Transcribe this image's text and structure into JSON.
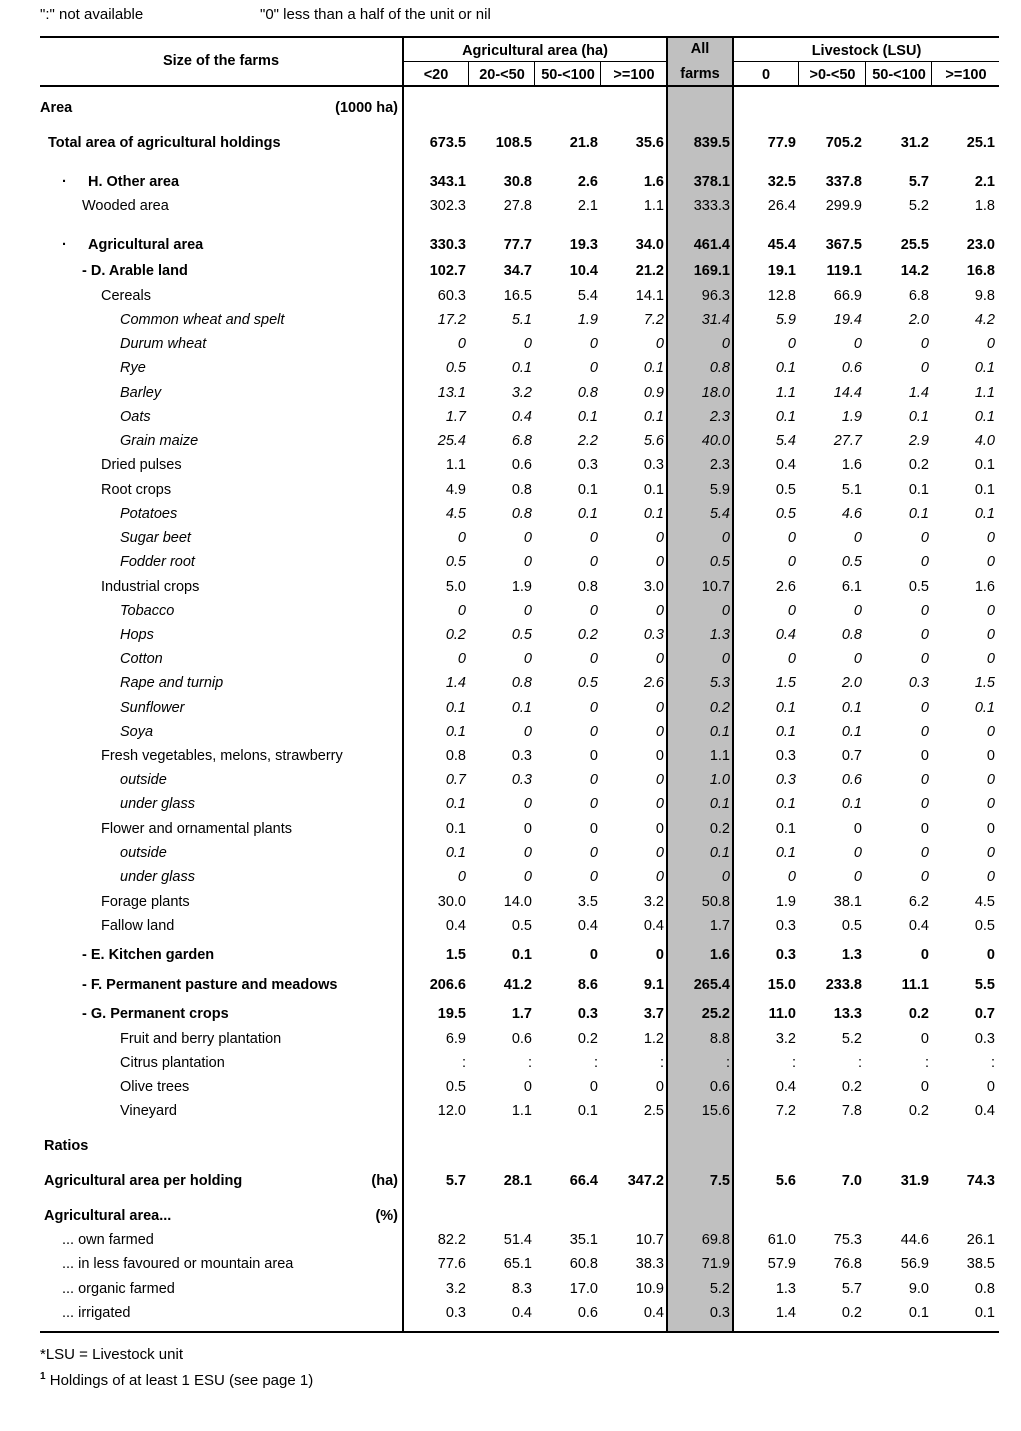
{
  "notes": {
    "not_available": "\":\" not available",
    "zero": "\"0\" less than a half of the unit or nil"
  },
  "header": {
    "size_col": "Size of the farms",
    "agri_group": "Agricultural area (ha)",
    "all_top": "All",
    "all_bottom": "farms",
    "lsu_group": "Livestock (LSU)",
    "sub": [
      "<20",
      "20-<50",
      "50-<100",
      ">=100",
      "0",
      ">0-<50",
      "50-<100",
      ">=100"
    ]
  },
  "rows": [
    {
      "label": "Area",
      "unit": "(1000 ha)",
      "indent": 0,
      "style": "b",
      "values": []
    },
    {
      "label": "Total area of agricultural holdings",
      "indent": 8,
      "style": "b",
      "values": [
        "673.5",
        "108.5",
        "21.8",
        "35.6",
        "839.5",
        "77.9",
        "705.2",
        "31.2",
        "25.1"
      ]
    },
    {
      "label": "H. Other  area",
      "bullet": "·",
      "indent": 48,
      "style": "b",
      "values": [
        "343.1",
        "30.8",
        "2.6",
        "1.6",
        "378.1",
        "32.5",
        "337.8",
        "5.7",
        "2.1"
      ]
    },
    {
      "label": "Wooded area",
      "indent": 42,
      "style": "",
      "values": [
        "302.3",
        "27.8",
        "2.1",
        "1.1",
        "333.3",
        "26.4",
        "299.9",
        "5.2",
        "1.8"
      ]
    },
    {
      "label": "Agricultural area",
      "bullet": "·",
      "indent": 48,
      "style": "b",
      "values": [
        "330.3",
        "77.7",
        "19.3",
        "34.0",
        "461.4",
        "45.4",
        "367.5",
        "25.5",
        "23.0"
      ]
    },
    {
      "label": "- D. Arable land",
      "indent": 42,
      "style": "b",
      "values": [
        "102.7",
        "34.7",
        "10.4",
        "21.2",
        "169.1",
        "19.1",
        "119.1",
        "14.2",
        "16.8"
      ]
    },
    {
      "label": "Cereals",
      "indent": 61,
      "style": "",
      "values": [
        "60.3",
        "16.5",
        "5.4",
        "14.1",
        "96.3",
        "12.8",
        "66.9",
        "6.8",
        "9.8"
      ]
    },
    {
      "label": "Common wheat and spelt",
      "indent": 80,
      "style": "i",
      "values": [
        "17.2",
        "5.1",
        "1.9",
        "7.2",
        "31.4",
        "5.9",
        "19.4",
        "2.0",
        "4.2"
      ]
    },
    {
      "label": "Durum wheat",
      "indent": 80,
      "style": "i",
      "values": [
        "0",
        "0",
        "0",
        "0",
        "0",
        "0",
        "0",
        "0",
        "0"
      ]
    },
    {
      "label": "Rye",
      "indent": 80,
      "style": "i",
      "values": [
        "0.5",
        "0.1",
        "0",
        "0.1",
        "0.8",
        "0.1",
        "0.6",
        "0",
        "0.1"
      ]
    },
    {
      "label": "Barley",
      "indent": 80,
      "style": "i",
      "values": [
        "13.1",
        "3.2",
        "0.8",
        "0.9",
        "18.0",
        "1.1",
        "14.4",
        "1.4",
        "1.1"
      ]
    },
    {
      "label": "Oats",
      "indent": 80,
      "style": "i",
      "values": [
        "1.7",
        "0.4",
        "0.1",
        "0.1",
        "2.3",
        "0.1",
        "1.9",
        "0.1",
        "0.1"
      ]
    },
    {
      "label": "Grain maize",
      "indent": 80,
      "style": "i",
      "values": [
        "25.4",
        "6.8",
        "2.2",
        "5.6",
        "40.0",
        "5.4",
        "27.7",
        "2.9",
        "4.0"
      ]
    },
    {
      "label": "Dried pulses",
      "indent": 61,
      "style": "",
      "values": [
        "1.1",
        "0.6",
        "0.3",
        "0.3",
        "2.3",
        "0.4",
        "1.6",
        "0.2",
        "0.1"
      ]
    },
    {
      "label": "Root crops",
      "indent": 61,
      "style": "",
      "values": [
        "4.9",
        "0.8",
        "0.1",
        "0.1",
        "5.9",
        "0.5",
        "5.1",
        "0.1",
        "0.1"
      ]
    },
    {
      "label": "Potatoes",
      "indent": 80,
      "style": "i",
      "values": [
        "4.5",
        "0.8",
        "0.1",
        "0.1",
        "5.4",
        "0.5",
        "4.6",
        "0.1",
        "0.1"
      ]
    },
    {
      "label": "Sugar beet",
      "indent": 80,
      "style": "i",
      "values": [
        "0",
        "0",
        "0",
        "0",
        "0",
        "0",
        "0",
        "0",
        "0"
      ]
    },
    {
      "label": "Fodder root",
      "indent": 80,
      "style": "i",
      "values": [
        "0.5",
        "0",
        "0",
        "0",
        "0.5",
        "0",
        "0.5",
        "0",
        "0"
      ]
    },
    {
      "label": "Industrial crops",
      "indent": 61,
      "style": "",
      "values": [
        "5.0",
        "1.9",
        "0.8",
        "3.0",
        "10.7",
        "2.6",
        "6.1",
        "0.5",
        "1.6"
      ]
    },
    {
      "label": "Tobacco",
      "indent": 80,
      "style": "i",
      "values": [
        "0",
        "0",
        "0",
        "0",
        "0",
        "0",
        "0",
        "0",
        "0"
      ]
    },
    {
      "label": "Hops",
      "indent": 80,
      "style": "i",
      "values": [
        "0.2",
        "0.5",
        "0.2",
        "0.3",
        "1.3",
        "0.4",
        "0.8",
        "0",
        "0"
      ]
    },
    {
      "label": "Cotton",
      "indent": 80,
      "style": "i",
      "values": [
        "0",
        "0",
        "0",
        "0",
        "0",
        "0",
        "0",
        "0",
        "0"
      ]
    },
    {
      "label": "Rape and turnip",
      "indent": 80,
      "style": "i",
      "values": [
        "1.4",
        "0.8",
        "0.5",
        "2.6",
        "5.3",
        "1.5",
        "2.0",
        "0.3",
        "1.5"
      ]
    },
    {
      "label": "Sunflower",
      "indent": 80,
      "style": "i",
      "values": [
        "0.1",
        "0.1",
        "0",
        "0",
        "0.2",
        "0.1",
        "0.1",
        "0",
        "0.1"
      ]
    },
    {
      "label": "Soya",
      "indent": 80,
      "style": "i",
      "values": [
        "0.1",
        "0",
        "0",
        "0",
        "0.1",
        "0.1",
        "0.1",
        "0",
        "0"
      ]
    },
    {
      "label": "Fresh vegetables, melons, strawberry",
      "indent": 61,
      "style": "",
      "values": [
        "0.8",
        "0.3",
        "0",
        "0",
        "1.1",
        "0.3",
        "0.7",
        "0",
        "0"
      ]
    },
    {
      "label": "outside",
      "indent": 80,
      "style": "i",
      "values": [
        "0.7",
        "0.3",
        "0",
        "0",
        "1.0",
        "0.3",
        "0.6",
        "0",
        "0"
      ]
    },
    {
      "label": "under glass",
      "indent": 80,
      "style": "i",
      "values": [
        "0.1",
        "0",
        "0",
        "0",
        "0.1",
        "0.1",
        "0.1",
        "0",
        "0"
      ]
    },
    {
      "label": "Flower and ornamental plants",
      "indent": 61,
      "style": "",
      "values": [
        "0.1",
        "0",
        "0",
        "0",
        "0.2",
        "0.1",
        "0",
        "0",
        "0"
      ]
    },
    {
      "label": "outside",
      "indent": 80,
      "style": "i",
      "values": [
        "0.1",
        "0",
        "0",
        "0",
        "0.1",
        "0.1",
        "0",
        "0",
        "0"
      ]
    },
    {
      "label": "under glass",
      "indent": 80,
      "style": "i",
      "values": [
        "0",
        "0",
        "0",
        "0",
        "0",
        "0",
        "0",
        "0",
        "0"
      ]
    },
    {
      "label": "Forage plants",
      "indent": 61,
      "style": "",
      "values": [
        "30.0",
        "14.0",
        "3.5",
        "3.2",
        "50.8",
        "1.9",
        "38.1",
        "6.2",
        "4.5"
      ]
    },
    {
      "label": "Fallow land",
      "indent": 61,
      "style": "",
      "values": [
        "0.4",
        "0.5",
        "0.4",
        "0.4",
        "1.7",
        "0.3",
        "0.5",
        "0.4",
        "0.5"
      ]
    },
    {
      "label": "- E. Kitchen garden",
      "indent": 42,
      "style": "b",
      "values": [
        "1.5",
        "0.1",
        "0",
        "0",
        "1.6",
        "0.3",
        "1.3",
        "0",
        "0"
      ]
    },
    {
      "label": "- F.  Permanent pasture and meadows",
      "indent": 42,
      "style": "b",
      "values": [
        "206.6",
        "41.2",
        "8.6",
        "9.1",
        "265.4",
        "15.0",
        "233.8",
        "11.1",
        "5.5"
      ]
    },
    {
      "label": "- G. Permanent crops",
      "indent": 42,
      "style": "b",
      "values": [
        "19.5",
        "1.7",
        "0.3",
        "3.7",
        "25.2",
        "11.0",
        "13.3",
        "0.2",
        "0.7"
      ]
    },
    {
      "label": "Fruit and berry plantation",
      "indent": 80,
      "style": "",
      "values": [
        "6.9",
        "0.6",
        "0.2",
        "1.2",
        "8.8",
        "3.2",
        "5.2",
        "0",
        "0.3"
      ]
    },
    {
      "label": "Citrus plantation",
      "indent": 80,
      "style": "",
      "values": [
        ":",
        ":",
        ":",
        ":",
        ":",
        ":",
        ":",
        ":",
        ":"
      ]
    },
    {
      "label": "Olive trees",
      "indent": 80,
      "style": "",
      "values": [
        "0.5",
        "0",
        "0",
        "0",
        "0.6",
        "0.4",
        "0.2",
        "0",
        "0"
      ]
    },
    {
      "label": "Vineyard",
      "indent": 80,
      "style": "",
      "values": [
        "12.0",
        "1.1",
        "0.1",
        "2.5",
        "15.6",
        "7.2",
        "7.8",
        "0.2",
        "0.4"
      ]
    },
    {
      "label": "Ratios",
      "indent": 4,
      "style": "b",
      "values": []
    },
    {
      "label": "Agricultural area per holding",
      "unit": "(ha)",
      "indent": 4,
      "style": "b",
      "values": [
        "5.7",
        "28.1",
        "66.4",
        "347.2",
        "7.5",
        "5.6",
        "7.0",
        "31.9",
        "74.3"
      ]
    },
    {
      "label": "Agricultural area...",
      "unit": "(%)",
      "indent": 4,
      "style": "b",
      "values": []
    },
    {
      "label": "... own farmed",
      "indent": 22,
      "style": "",
      "values": [
        "82.2",
        "51.4",
        "35.1",
        "10.7",
        "69.8",
        "61.0",
        "75.3",
        "44.6",
        "26.1"
      ]
    },
    {
      "label": "... in less favoured or mountain area",
      "indent": 22,
      "style": "",
      "values": [
        "77.6",
        "65.1",
        "60.8",
        "38.3",
        "71.9",
        "57.9",
        "76.8",
        "56.9",
        "38.5"
      ]
    },
    {
      "label": "... organic farmed",
      "indent": 22,
      "style": "",
      "values": [
        "3.2",
        "8.3",
        "17.0",
        "10.9",
        "5.2",
        "1.3",
        "5.7",
        "9.0",
        "0.8"
      ]
    },
    {
      "label": "... irrigated",
      "indent": 22,
      "style": "",
      "values": [
        "0.3",
        "0.4",
        "0.6",
        "0.4",
        "0.3",
        "1.4",
        "0.2",
        "0.1",
        "0.1"
      ]
    }
  ],
  "footnotes": {
    "lsu": "*LSU = Livestock unit",
    "sup": "1",
    "holdings": "Holdings of at least 1 ESU (see page 1)"
  }
}
